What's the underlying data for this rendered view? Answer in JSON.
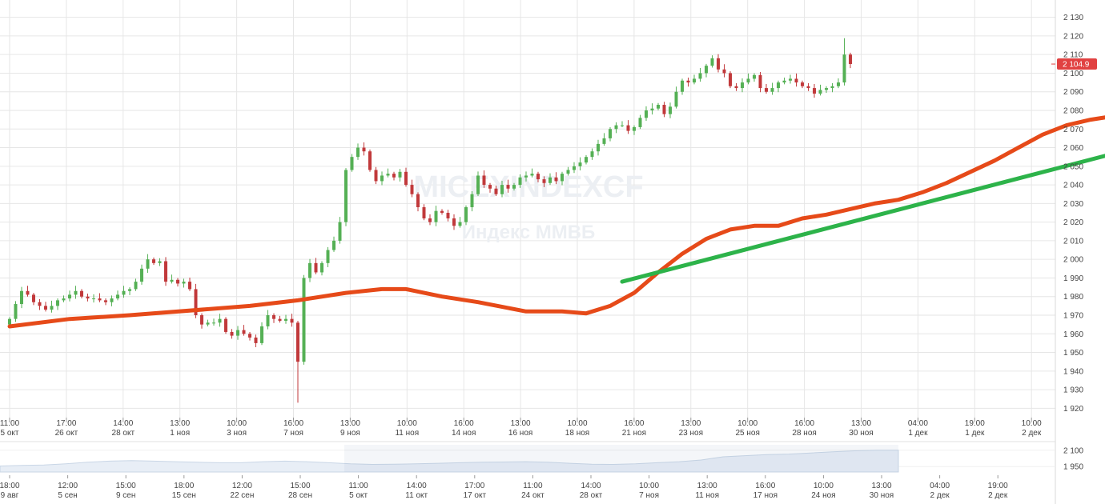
{
  "chart_data": [
    {
      "type": "candlestick",
      "watermark": "MICEXINDEXCF",
      "sub_watermark": "Индекс ММВБ",
      "y_ticks": [
        "1 920",
        "1 930",
        "1 940",
        "1 950",
        "1 960",
        "1 970",
        "1 980",
        "1 990",
        "2 000",
        "2 010",
        "2 020",
        "2 030",
        "2 040",
        "2 050",
        "2 060",
        "2 070",
        "2 080",
        "2 090",
        "2 100",
        "2 110",
        "2 120",
        "2 130"
      ],
      "ylim": [
        1915,
        2135
      ],
      "last_price": 2104.9,
      "last_price_label": "2 104.9",
      "x_ticks": [
        {
          "time": "11:00",
          "date": "5 окт"
        },
        {
          "time": "17:00",
          "date": "26 окт"
        },
        {
          "time": "14:00",
          "date": "28 окт"
        },
        {
          "time": "13:00",
          "date": "1 ноя"
        },
        {
          "time": "10:00",
          "date": "3 ноя"
        },
        {
          "time": "16:00",
          "date": "7 ноя"
        },
        {
          "time": "13:00",
          "date": "9 ноя"
        },
        {
          "time": "10:00",
          "date": "11 ноя"
        },
        {
          "time": "16:00",
          "date": "14 ноя"
        },
        {
          "time": "13:00",
          "date": "16 ноя"
        },
        {
          "time": "10:00",
          "date": "18 ноя"
        },
        {
          "time": "16:00",
          "date": "21 ноя"
        },
        {
          "time": "13:00",
          "date": "23 ноя"
        },
        {
          "time": "10:00",
          "date": "25 ноя"
        },
        {
          "time": "16:00",
          "date": "28 ноя"
        },
        {
          "time": "13:00",
          "date": "30 ноя"
        },
        {
          "time": "04:00",
          "date": "1 дек"
        },
        {
          "time": "19:00",
          "date": "1 дек"
        },
        {
          "time": "10:00",
          "date": "2 дек"
        }
      ],
      "closes": [
        1968,
        1976,
        1983,
        1981,
        1977,
        1975,
        1973,
        1975,
        1978,
        1979,
        1981,
        1983,
        1980,
        1979,
        1979,
        1978,
        1977,
        1979,
        1981,
        1983,
        1984,
        1988,
        1995,
        2000,
        1998,
        1999,
        1988,
        1989,
        1987,
        1988,
        1984,
        1970,
        1965,
        1966,
        1966,
        1968,
        1961,
        1959,
        1962,
        1960,
        1958,
        1955,
        1964,
        1970,
        1968,
        1967,
        1968,
        1966,
        1945,
        1990,
        1998,
        1993,
        1998,
        2005,
        2010,
        2020,
        2048,
        2055,
        2060,
        2058,
        2048,
        2042,
        2045,
        2046,
        2044,
        2047,
        2040,
        2035,
        2028,
        2022,
        2020,
        2026,
        2025,
        2022,
        2018,
        2020,
        2028,
        2035,
        2045,
        2040,
        2038,
        2035,
        2040,
        2038,
        2040,
        2044,
        2045,
        2046,
        2043,
        2041,
        2044,
        2042,
        2046,
        2048,
        2050,
        2052,
        2055,
        2058,
        2062,
        2065,
        2070,
        2072,
        2072,
        2069,
        2071,
        2076,
        2080,
        2081,
        2083,
        2078,
        2082,
        2090,
        2096,
        2095,
        2097,
        2100,
        2104,
        2108,
        2102,
        2100,
        2093,
        2092,
        2095,
        2097,
        2099,
        2092,
        2090,
        2092,
        2095,
        2096,
        2097,
        2095,
        2093,
        2092,
        2089,
        2091,
        2092,
        2093,
        2095,
        2110,
        2104.9
      ],
      "series": [
        {
          "name": "",
          "type": "moving-average",
          "color": "#e64a19",
          "points": [
            [
              0,
              1964
            ],
            [
              10,
              1968
            ],
            [
              20,
              1970
            ],
            [
              40,
              1975
            ],
            [
              48,
              1978
            ],
            [
              56,
              1982
            ],
            [
              62,
              1984
            ],
            [
              66,
              1984
            ],
            [
              72,
              1980
            ],
            [
              78,
              1977
            ],
            [
              86,
              1972
            ],
            [
              92,
              1972
            ],
            [
              96,
              1971
            ],
            [
              100,
              1975
            ],
            [
              104,
              1982
            ],
            [
              108,
              1993
            ],
            [
              112,
              2003
            ],
            [
              116,
              2011
            ],
            [
              120,
              2016
            ],
            [
              124,
              2018
            ],
            [
              128,
              2018
            ],
            [
              132,
              2022
            ],
            [
              136,
              2024
            ],
            [
              140,
              2027
            ],
            [
              144,
              2030
            ],
            [
              148,
              2032
            ],
            [
              152,
              2036
            ],
            [
              156,
              2041
            ],
            [
              160,
              2047
            ],
            [
              164,
              2053
            ],
            [
              168,
              2060
            ],
            [
              172,
              2067
            ],
            [
              176,
              2072
            ],
            [
              180,
              2075
            ],
            [
              184,
              2077
            ],
            [
              188,
              2080
            ],
            [
              192,
              2081
            ],
            [
              196,
              2082
            ],
            [
              200,
              2083
            ],
            [
              204,
              2085
            ],
            [
              207,
              2087
            ]
          ]
        },
        {
          "name": "",
          "type": "trendline",
          "color": "#2db34a",
          "points": [
            [
              102,
              1988
            ],
            [
              240,
              2104
            ]
          ]
        }
      ],
      "colors": {
        "up": "#55b055",
        "down": "#c1393b",
        "grid": "#e6e6e6",
        "price_bg": "#e14141"
      }
    },
    {
      "type": "area",
      "y_ticks": [
        "2 100",
        "1 950"
      ],
      "ylim": [
        1900,
        2150
      ],
      "values": [
        1955,
        1960,
        1965,
        1975,
        1990,
        2000,
        2005,
        2000,
        1995,
        1990,
        1985,
        1985,
        1995,
        2000,
        1995,
        1985,
        1975,
        1970,
        1972,
        1975,
        1980,
        1985,
        1990,
        1992,
        1995,
        1990,
        1980,
        1972,
        1970,
        1975,
        1985,
        1995,
        2010,
        2040,
        2050,
        2060,
        2065,
        2075,
        2085,
        2095,
        2100,
        2100
      ],
      "x_ticks": [
        {
          "time": "18:00",
          "date": "9 авг"
        },
        {
          "time": "12:00",
          "date": "5 сен"
        },
        {
          "time": "15:00",
          "date": "9 сен"
        },
        {
          "time": "18:00",
          "date": "15 сен"
        },
        {
          "time": "12:00",
          "date": "22 сен"
        },
        {
          "time": "15:00",
          "date": "28 сен"
        },
        {
          "time": "11:00",
          "date": "5 окт"
        },
        {
          "time": "14:00",
          "date": "11 окт"
        },
        {
          "time": "17:00",
          "date": "17 окт"
        },
        {
          "time": "11:00",
          "date": "24 окт"
        },
        {
          "time": "14:00",
          "date": "28 окт"
        },
        {
          "time": "10:00",
          "date": "7 ноя"
        },
        {
          "time": "13:00",
          "date": "11 ноя"
        },
        {
          "time": "16:00",
          "date": "17 ноя"
        },
        {
          "time": "10:00",
          "date": "24 ноя"
        },
        {
          "time": "13:00",
          "date": "30 ноя"
        },
        {
          "time": "04:00",
          "date": "2 дек"
        },
        {
          "time": "19:00",
          "date": "2 дек"
        }
      ]
    }
  ]
}
